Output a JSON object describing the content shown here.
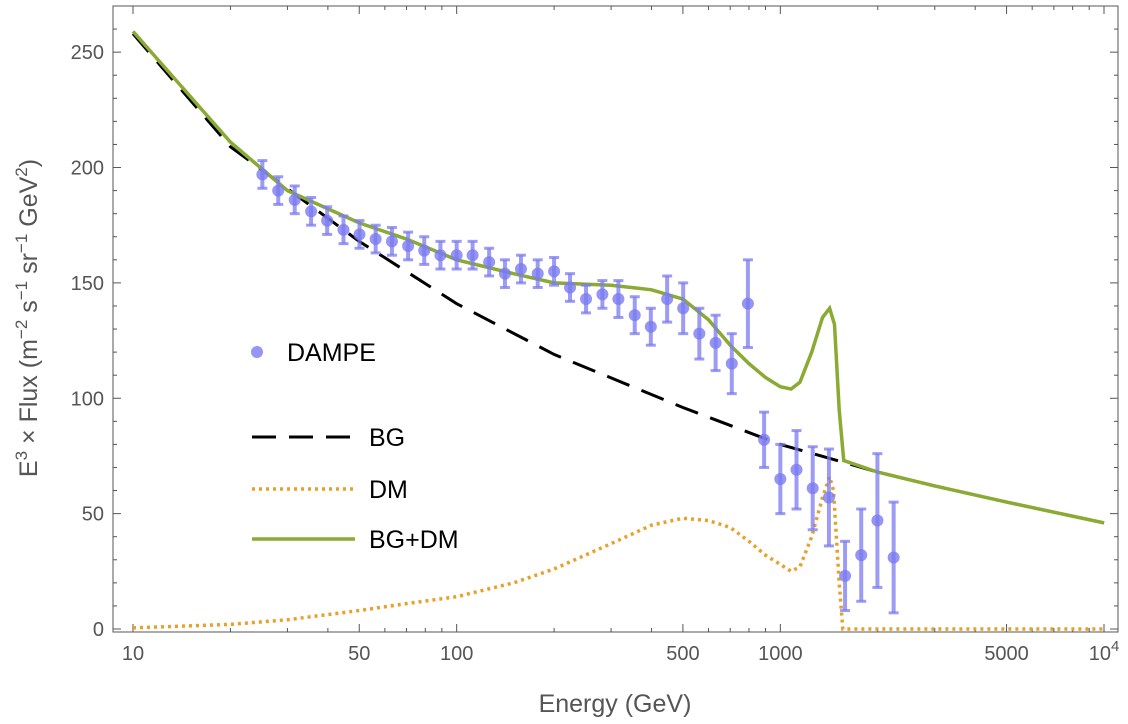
{
  "chart_data": {
    "type": "line",
    "title": "",
    "xlabel": "Energy (GeV)",
    "ylabel": "E³ × Flux (m⁻² s⁻¹ sr⁻¹ GeV²)",
    "ylabel_parts": {
      "E": "E",
      "exp3": "3",
      "times_flux": " × Flux (m",
      "exp_m2": "−2",
      "s": " s",
      "exp_s": "−1",
      "sr": " sr",
      "exp_sr": "−1",
      "gev": " GeV",
      "exp_gev": "2",
      "close": ")"
    },
    "x_scale": "log",
    "xlim": [
      10,
      11000
    ],
    "ylim": [
      0,
      270
    ],
    "x_ticks": [
      {
        "value": 10,
        "label": "10"
      },
      {
        "value": 50,
        "label": "50"
      },
      {
        "value": 100,
        "label": "100"
      },
      {
        "value": 500,
        "label": "500"
      },
      {
        "value": 1000,
        "label": "1000"
      },
      {
        "value": 5000,
        "label": "5000"
      },
      {
        "value": 10000,
        "label": "10",
        "sup": "4"
      }
    ],
    "y_ticks": [
      0,
      50,
      100,
      150,
      200,
      250
    ],
    "grid": false,
    "legend_position": "left",
    "colors": {
      "dampe": "#7b7bf0",
      "bg": "#000000",
      "dm": "#e8a02a",
      "bgdm": "#8aaa33",
      "axis": "#555555"
    },
    "series": [
      {
        "name": "DAMPE",
        "style": "points-with-errorbars",
        "points": [
          {
            "x": 25.1,
            "y": 197,
            "err": 6
          },
          {
            "x": 28.1,
            "y": 190,
            "err": 6
          },
          {
            "x": 31.6,
            "y": 186,
            "err": 6
          },
          {
            "x": 35.5,
            "y": 181,
            "err": 6
          },
          {
            "x": 39.8,
            "y": 177,
            "err": 6
          },
          {
            "x": 44.7,
            "y": 173,
            "err": 6
          },
          {
            "x": 50.1,
            "y": 171,
            "err": 6
          },
          {
            "x": 56.2,
            "y": 169,
            "err": 6
          },
          {
            "x": 63.1,
            "y": 168,
            "err": 6
          },
          {
            "x": 70.8,
            "y": 166,
            "err": 6
          },
          {
            "x": 79.4,
            "y": 164,
            "err": 6
          },
          {
            "x": 89.1,
            "y": 162,
            "err": 6
          },
          {
            "x": 100,
            "y": 162,
            "err": 6
          },
          {
            "x": 112,
            "y": 162,
            "err": 6
          },
          {
            "x": 126,
            "y": 159,
            "err": 6
          },
          {
            "x": 141,
            "y": 154,
            "err": 6
          },
          {
            "x": 158,
            "y": 156,
            "err": 6
          },
          {
            "x": 178,
            "y": 154,
            "err": 6
          },
          {
            "x": 200,
            "y": 155,
            "err": 6
          },
          {
            "x": 224,
            "y": 148,
            "err": 6
          },
          {
            "x": 251,
            "y": 143,
            "err": 6
          },
          {
            "x": 282,
            "y": 145,
            "err": 6
          },
          {
            "x": 316,
            "y": 143,
            "err": 8
          },
          {
            "x": 355,
            "y": 136,
            "err": 8
          },
          {
            "x": 398,
            "y": 131,
            "err": 8
          },
          {
            "x": 447,
            "y": 143,
            "err": 10
          },
          {
            "x": 501,
            "y": 139,
            "err": 11
          },
          {
            "x": 562,
            "y": 128,
            "err": 11
          },
          {
            "x": 631,
            "y": 124,
            "err": 12
          },
          {
            "x": 708,
            "y": 115,
            "err": 13
          },
          {
            "x": 794,
            "y": 141,
            "err": 19
          },
          {
            "x": 891,
            "y": 82,
            "err": 12
          },
          {
            "x": 1000,
            "y": 65,
            "err": 15
          },
          {
            "x": 1122,
            "y": 69,
            "err": 17
          },
          {
            "x": 1259,
            "y": 61,
            "err": 18
          },
          {
            "x": 1413,
            "y": 57,
            "err": 21
          },
          {
            "x": 1585,
            "y": 23,
            "err": 15
          },
          {
            "x": 1778,
            "y": 32,
            "err": 20
          },
          {
            "x": 1995,
            "y": 47,
            "err": 29
          },
          {
            "x": 2239,
            "y": 31,
            "err": 24
          }
        ]
      },
      {
        "name": "BG",
        "style": "dashed",
        "points": [
          [
            10,
            258
          ],
          [
            20,
            209
          ],
          [
            50,
            168
          ],
          [
            100,
            141
          ],
          [
            200,
            119
          ],
          [
            500,
            96
          ],
          [
            1000,
            80
          ],
          [
            1500,
            73
          ],
          [
            2000,
            68
          ],
          [
            3000,
            62
          ],
          [
            5000,
            55
          ],
          [
            10000,
            46
          ]
        ]
      },
      {
        "name": "DM",
        "style": "dotted",
        "points": [
          [
            10,
            0.5
          ],
          [
            20,
            2
          ],
          [
            30,
            4
          ],
          [
            50,
            8
          ],
          [
            70,
            11
          ],
          [
            100,
            14
          ],
          [
            150,
            20
          ],
          [
            200,
            26
          ],
          [
            300,
            37
          ],
          [
            400,
            45
          ],
          [
            500,
            48
          ],
          [
            600,
            47
          ],
          [
            700,
            44
          ],
          [
            800,
            38
          ],
          [
            900,
            32
          ],
          [
            1000,
            28
          ],
          [
            1080,
            25
          ],
          [
            1150,
            27
          ],
          [
            1250,
            40
          ],
          [
            1350,
            57
          ],
          [
            1420,
            66
          ],
          [
            1460,
            60
          ],
          [
            1520,
            20
          ],
          [
            1560,
            0
          ],
          [
            2000,
            0
          ],
          [
            5000,
            0
          ],
          [
            10000,
            0
          ]
        ]
      },
      {
        "name": "BG+DM",
        "style": "solid",
        "points": [
          [
            10,
            259
          ],
          [
            20,
            211
          ],
          [
            30,
            190
          ],
          [
            50,
            176
          ],
          [
            70,
            169
          ],
          [
            100,
            160
          ],
          [
            150,
            154
          ],
          [
            200,
            150
          ],
          [
            300,
            149
          ],
          [
            400,
            147
          ],
          [
            500,
            143
          ],
          [
            600,
            134
          ],
          [
            700,
            123
          ],
          [
            800,
            115
          ],
          [
            900,
            109
          ],
          [
            1000,
            105
          ],
          [
            1080,
            104
          ],
          [
            1150,
            107
          ],
          [
            1250,
            120
          ],
          [
            1350,
            135
          ],
          [
            1420,
            139
          ],
          [
            1470,
            132
          ],
          [
            1520,
            95
          ],
          [
            1570,
            73
          ],
          [
            2000,
            68
          ],
          [
            3000,
            62
          ],
          [
            5000,
            55
          ],
          [
            10000,
            46
          ]
        ]
      }
    ]
  }
}
